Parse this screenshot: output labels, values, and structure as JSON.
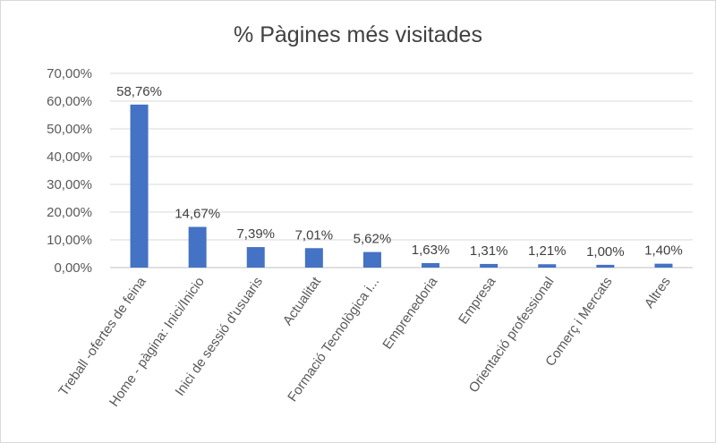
{
  "chart_data": {
    "type": "bar",
    "title": "% Pàgines més visitades",
    "xlabel": "",
    "ylabel": "",
    "ylim": [
      0,
      70
    ],
    "yticks": [
      0,
      10,
      20,
      30,
      40,
      50,
      60,
      70
    ],
    "ytick_labels": [
      "0,00%",
      "10,00%",
      "20,00%",
      "30,00%",
      "40,00%",
      "50,00%",
      "60,00%",
      "70,00%"
    ],
    "categories": [
      "Treball -ofertes de feina",
      "Home - pàgina: Inici/Inicio",
      "Inici de sessió d'usuaris",
      "Actualitat",
      "Formació Tecnològica i...",
      "Emprenedoria",
      "Empresa",
      "Orientació professional",
      "Comerç i Mercats",
      "Altres"
    ],
    "values": [
      58.76,
      14.67,
      7.39,
      7.01,
      5.62,
      1.63,
      1.31,
      1.21,
      1.0,
      1.4
    ],
    "data_labels": [
      "58,76%",
      "14,67%",
      "7,39%",
      "7,01%",
      "5,62%",
      "1,63%",
      "1,31%",
      "1,21%",
      "1,00%",
      "1,40%"
    ],
    "grid": true,
    "legend": "none",
    "bar_color": "#4472c4"
  }
}
